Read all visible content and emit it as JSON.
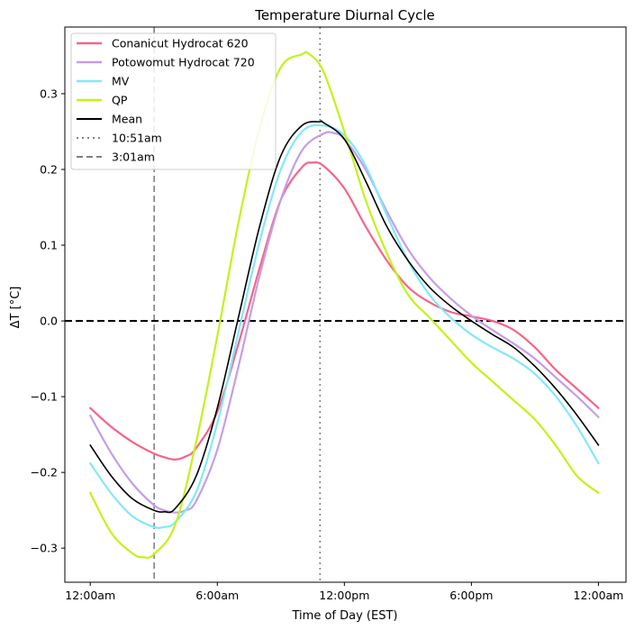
{
  "chart_data": {
    "type": "line",
    "title": "Temperature Diurnal Cycle",
    "xlabel": "Time of Day (EST)",
    "ylabel": "ΔT [°C]",
    "x_unit": "hours",
    "xlim": [
      -1.2,
      25.3
    ],
    "ylim": [
      -0.345,
      0.388
    ],
    "x_ticks": [
      {
        "value": 0,
        "label": "12:00am"
      },
      {
        "value": 6,
        "label": "6:00am"
      },
      {
        "value": 12,
        "label": "12:00pm"
      },
      {
        "value": 18,
        "label": "6:00pm"
      },
      {
        "value": 24,
        "label": "12:00am"
      }
    ],
    "y_ticks": [
      {
        "value": -0.3,
        "label": "−0.3"
      },
      {
        "value": -0.2,
        "label": "−0.2"
      },
      {
        "value": -0.1,
        "label": "−0.1"
      },
      {
        "value": 0.0,
        "label": "0.0"
      },
      {
        "value": 0.1,
        "label": "0.1"
      },
      {
        "value": 0.2,
        "label": "0.2"
      },
      {
        "value": 0.3,
        "label": "0.3"
      }
    ],
    "legend_position": "top-left",
    "series": [
      {
        "name": "Conanicut Hydrocat 620",
        "color": "#f7648a",
        "width": 2.2,
        "x": [
          0,
          1,
          2,
          3,
          3.5,
          4,
          4.5,
          5,
          6,
          7,
          8,
          9,
          10,
          10.5,
          11,
          12,
          13,
          14,
          15,
          16,
          17,
          18,
          19,
          20,
          21,
          22,
          23,
          24
        ],
        "y": [
          -0.115,
          -0.14,
          -0.16,
          -0.175,
          -0.18,
          -0.183,
          -0.179,
          -0.168,
          -0.12,
          -0.03,
          0.07,
          0.16,
          0.203,
          0.209,
          0.205,
          0.175,
          0.125,
          0.08,
          0.045,
          0.025,
          0.012,
          0.006,
          0.0,
          -0.012,
          -0.035,
          -0.065,
          -0.09,
          -0.115
        ]
      },
      {
        "name": "Potowomut Hydrocat 720",
        "color": "#c49ee8",
        "width": 2.2,
        "x": [
          0,
          1,
          2,
          3,
          3.5,
          4,
          4.5,
          5,
          6,
          7,
          8,
          9,
          10,
          11,
          11.5,
          12,
          13,
          14,
          15,
          16,
          17,
          18,
          19,
          20,
          21,
          22,
          23,
          24
        ],
        "y": [
          -0.125,
          -0.175,
          -0.215,
          -0.243,
          -0.25,
          -0.253,
          -0.25,
          -0.238,
          -0.17,
          -0.06,
          0.06,
          0.16,
          0.225,
          0.247,
          0.248,
          0.24,
          0.2,
          0.145,
          0.095,
          0.058,
          0.03,
          0.007,
          -0.012,
          -0.03,
          -0.05,
          -0.075,
          -0.1,
          -0.127
        ]
      },
      {
        "name": "MV",
        "color": "#82e8fb",
        "width": 2.2,
        "x": [
          0,
          1,
          2,
          3,
          3.5,
          4,
          5,
          6,
          7,
          8,
          9,
          10,
          11,
          12,
          13,
          14,
          15,
          16,
          17,
          18,
          19,
          20,
          21,
          22,
          23,
          24
        ],
        "y": [
          -0.188,
          -0.228,
          -0.258,
          -0.272,
          -0.272,
          -0.266,
          -0.226,
          -0.135,
          -0.015,
          0.105,
          0.2,
          0.25,
          0.258,
          0.245,
          0.205,
          0.14,
          0.08,
          0.035,
          0.005,
          -0.018,
          -0.035,
          -0.05,
          -0.07,
          -0.1,
          -0.14,
          -0.188
        ]
      },
      {
        "name": "QP",
        "color": "#c4f219",
        "width": 2.2,
        "x": [
          0,
          1,
          2,
          2.5,
          3,
          4,
          5,
          6,
          7,
          8,
          9,
          10,
          10.3,
          11,
          12,
          13,
          14,
          15,
          16,
          17,
          18,
          19,
          20,
          21,
          22,
          23,
          24
        ],
        "y": [
          -0.227,
          -0.28,
          -0.307,
          -0.312,
          -0.308,
          -0.27,
          -0.16,
          -0.02,
          0.13,
          0.255,
          0.335,
          0.352,
          0.353,
          0.33,
          0.25,
          0.16,
          0.09,
          0.035,
          0.005,
          -0.025,
          -0.055,
          -0.08,
          -0.105,
          -0.13,
          -0.165,
          -0.205,
          -0.227
        ]
      },
      {
        "name": "Mean",
        "color": "#000000",
        "width": 1.6,
        "x": [
          0,
          1,
          2,
          3,
          3.5,
          4,
          5,
          6,
          7,
          8,
          9,
          10,
          10.85,
          11,
          12,
          13,
          14,
          15,
          16,
          17,
          18,
          19,
          20,
          21,
          22,
          23,
          24
        ],
        "y": [
          -0.164,
          -0.205,
          -0.235,
          -0.25,
          -0.252,
          -0.248,
          -0.205,
          -0.115,
          0.005,
          0.125,
          0.218,
          0.258,
          0.263,
          0.262,
          0.24,
          0.185,
          0.125,
          0.08,
          0.045,
          0.02,
          0.0,
          -0.018,
          -0.035,
          -0.06,
          -0.09,
          -0.125,
          -0.164
        ]
      }
    ],
    "reference_lines": [
      {
        "name": "10:51am",
        "orientation": "vertical",
        "value": 10.85,
        "style": "dotted",
        "color": "#808080",
        "in_legend": true
      },
      {
        "name": "3:01am",
        "orientation": "vertical",
        "value": 3.017,
        "style": "dashed",
        "color": "#808080",
        "in_legend": true
      },
      {
        "name": "zero",
        "orientation": "horizontal",
        "value": 0.0,
        "style": "dashed",
        "color": "#000000",
        "in_legend": false
      }
    ]
  }
}
